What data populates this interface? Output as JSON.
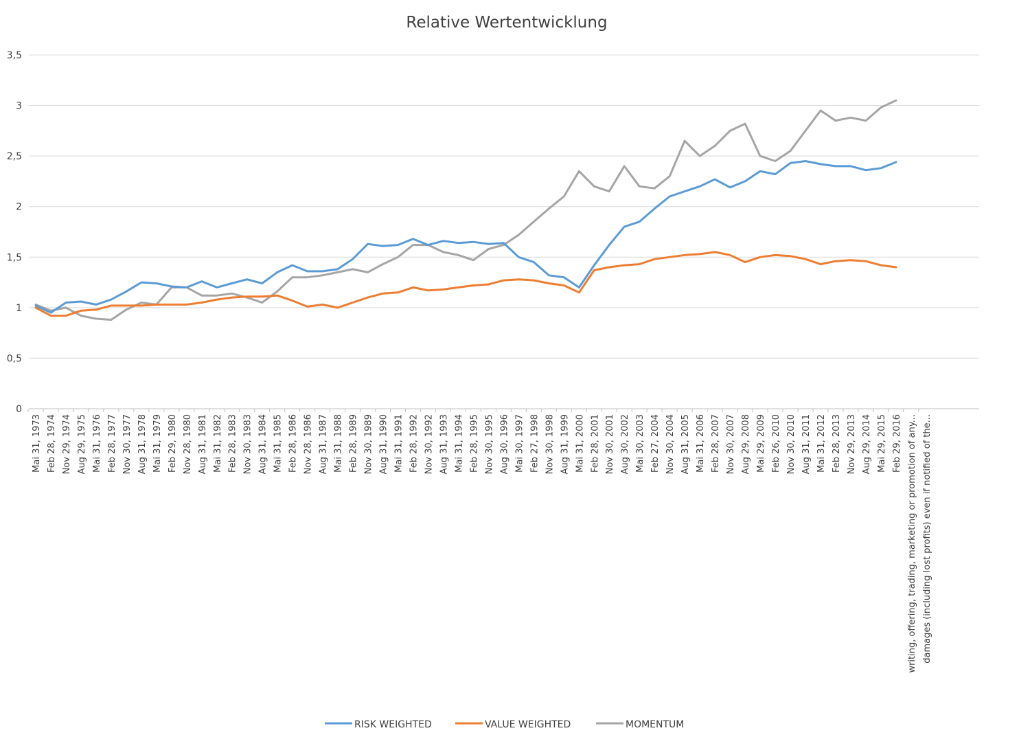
{
  "chart_data": {
    "type": "line",
    "title": "Relative Wertentwicklung",
    "xlabel": "",
    "ylabel": "",
    "ylim": [
      0,
      3.5
    ],
    "yticks": [
      "0",
      "0,5",
      "1",
      "1,5",
      "2",
      "2,5",
      "3",
      "3,5"
    ],
    "grid": true,
    "legend_position": "bottom",
    "categories": [
      "Mai 31, 1973",
      "Feb 28, 1974",
      "Nov 29, 1974",
      "Aug 29, 1975",
      "Mai 31, 1976",
      "Feb 28, 1977",
      "Nov 30, 1977",
      "Aug 31, 1978",
      "Mai 31, 1979",
      "Feb 29, 1980",
      "Nov 28, 1980",
      "Aug 31, 1981",
      "Mai 31, 1982",
      "Feb 28, 1983",
      "Nov 30, 1983",
      "Aug 31, 1984",
      "Mai 31, 1985",
      "Feb 28, 1986",
      "Nov 28, 1986",
      "Aug 31, 1987",
      "Mai 31, 1988",
      "Feb 28, 1989",
      "Nov 30, 1989",
      "Aug 31, 1990",
      "Mai 31, 1991",
      "Feb 28, 1992",
      "Nov 30, 1992",
      "Aug 31, 1993",
      "Mai 31, 1994",
      "Feb 28, 1995",
      "Nov 30, 1995",
      "Aug 30, 1996",
      "Mai 30, 1997",
      "Feb 27, 1998",
      "Nov 30, 1998",
      "Aug 31, 1999",
      "Mai 31, 2000",
      "Feb 28, 2001",
      "Nov 30, 2001",
      "Aug 30, 2002",
      "Mai 30, 2003",
      "Feb 27, 2004",
      "Nov 30, 2004",
      "Aug 31, 2005",
      "Mai 31, 2006",
      "Feb 28, 2007",
      "Nov 30, 2007",
      "Aug 29, 2008",
      "Mai 29, 2009",
      "Feb 26, 2010",
      "Nov 30, 2010",
      "Aug 31, 2011",
      "Mai 31, 2012",
      "Feb 28, 2013",
      "Nov 29, 2013",
      "Aug 29, 2014",
      "Mai 29, 2015",
      "Feb 29, 2016",
      "writing, offering, trading, marketing or promotion of any...",
      "damages (including lost profits) even if notified of the..."
    ],
    "series": [
      {
        "name": "RISK WEIGHTED",
        "color": "#5b9bd5",
        "values": [
          1.02,
          0.95,
          1.05,
          1.06,
          1.03,
          1.08,
          1.16,
          1.25,
          1.24,
          1.21,
          1.2,
          1.26,
          1.2,
          1.24,
          1.28,
          1.24,
          1.35,
          1.42,
          1.36,
          1.36,
          1.38,
          1.48,
          1.63,
          1.61,
          1.62,
          1.68,
          1.62,
          1.66,
          1.64,
          1.65,
          1.63,
          1.64,
          1.5,
          1.45,
          1.32,
          1.3,
          1.2,
          1.42,
          1.62,
          1.8,
          1.85,
          1.98,
          2.1,
          2.15,
          2.2,
          2.27,
          2.19,
          2.25,
          2.35,
          2.32,
          2.43,
          2.45,
          2.42,
          2.4,
          2.4,
          2.36,
          2.38,
          2.44,
          null,
          null
        ]
      },
      {
        "name": "VALUE WEIGHTED",
        "color": "#ed7d31",
        "values": [
          1.0,
          0.92,
          0.92,
          0.97,
          0.98,
          1.02,
          1.02,
          1.02,
          1.03,
          1.03,
          1.03,
          1.05,
          1.08,
          1.1,
          1.11,
          1.11,
          1.12,
          1.07,
          1.01,
          1.03,
          1.0,
          1.05,
          1.1,
          1.14,
          1.15,
          1.2,
          1.17,
          1.18,
          1.2,
          1.22,
          1.23,
          1.27,
          1.28,
          1.27,
          1.24,
          1.22,
          1.15,
          1.37,
          1.4,
          1.42,
          1.43,
          1.48,
          1.5,
          1.52,
          1.53,
          1.55,
          1.52,
          1.45,
          1.5,
          1.52,
          1.51,
          1.48,
          1.43,
          1.46,
          1.47,
          1.46,
          1.42,
          1.4,
          null,
          null
        ]
      },
      {
        "name": "MOMENTUM",
        "color": "#a5a5a5",
        "values": [
          1.03,
          0.97,
          1.0,
          0.92,
          0.89,
          0.88,
          0.98,
          1.05,
          1.03,
          1.2,
          1.2,
          1.12,
          1.12,
          1.14,
          1.1,
          1.05,
          1.16,
          1.3,
          1.3,
          1.32,
          1.35,
          1.38,
          1.35,
          1.43,
          1.5,
          1.62,
          1.62,
          1.55,
          1.52,
          1.47,
          1.58,
          1.62,
          1.72,
          1.85,
          1.98,
          2.1,
          2.35,
          2.2,
          2.15,
          2.4,
          2.2,
          2.18,
          2.3,
          2.65,
          2.5,
          2.6,
          2.75,
          2.82,
          2.5,
          2.45,
          2.55,
          2.75,
          2.95,
          2.85,
          2.88,
          2.85,
          2.98,
          3.05,
          null,
          null
        ]
      }
    ]
  }
}
